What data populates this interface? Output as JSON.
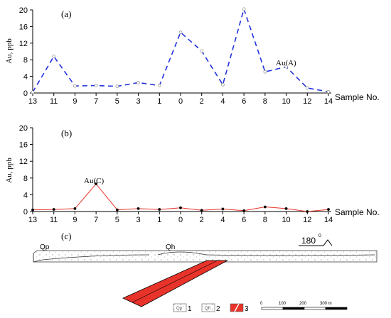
{
  "chart_data": [
    {
      "type": "line",
      "panel_label": "(a)",
      "ylabel": "Au, ppb",
      "xlabel": "Sample No.",
      "ylim": [
        0,
        20
      ],
      "yticks": [
        "0",
        "4",
        "8",
        "12",
        "16",
        "20"
      ],
      "categories": [
        "13",
        "11",
        "9",
        "7",
        "5",
        "3",
        "1",
        "0",
        "2",
        "4",
        "6",
        "8",
        "10",
        "12",
        "14"
      ],
      "series": [
        {
          "name": "Au(A)",
          "color": "#2233dd",
          "values": [
            0.2,
            8.8,
            1.7,
            1.8,
            1.6,
            2.5,
            1.8,
            14.6,
            10.1,
            2.0,
            20.2,
            5.1,
            6.3,
            1.2,
            0.3
          ]
        }
      ]
    },
    {
      "type": "line",
      "panel_label": "(b)",
      "ylabel": "Au, ppb",
      "xlabel": "Sample No.",
      "ylim": [
        0,
        20
      ],
      "yticks": [
        "0",
        "4",
        "8",
        "12",
        "16",
        "20"
      ],
      "categories": [
        "13",
        "11",
        "9",
        "7",
        "5",
        "3",
        "1",
        "0",
        "2",
        "4",
        "6",
        "8",
        "10",
        "12",
        "14"
      ],
      "series": [
        {
          "name": "Au(C)",
          "color": "#e8332a",
          "values": [
            0.4,
            0.5,
            0.7,
            6.6,
            0.4,
            0.7,
            0.5,
            0.9,
            0.3,
            0.6,
            0.2,
            1.1,
            0.7,
            0.0,
            0.5
          ]
        }
      ]
    }
  ],
  "section": {
    "panel_label": "(c)",
    "unit_labels": [
      "Qp",
      "Qh"
    ],
    "orientation": "180",
    "orientation_degree": "0",
    "legend": [
      {
        "number": "1",
        "symbol": "Qp"
      },
      {
        "number": "2",
        "symbol": "Qh"
      },
      {
        "number": "3",
        "symbol": ""
      }
    ],
    "scale_ticks": [
      "0",
      "100",
      "200",
      "300 m"
    ],
    "ore_color": "#e8332a"
  }
}
